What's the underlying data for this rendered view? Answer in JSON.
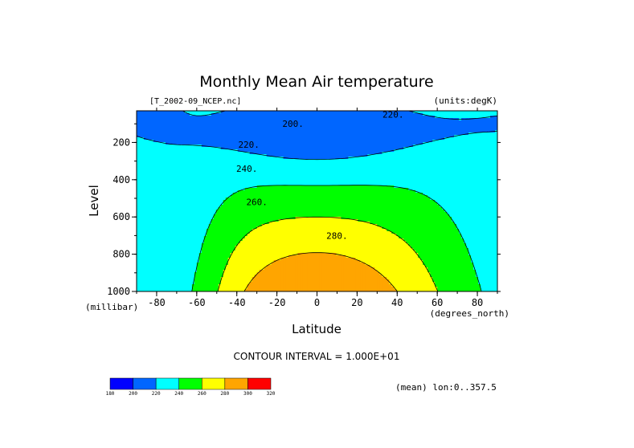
{
  "chart_data": {
    "type": "contour",
    "title": "Monthly Mean Air temperature",
    "file_label": "[T_2002-09_NCEP.nc]",
    "units_label": "(units:degK)",
    "xlabel": "Latitude",
    "xunits": "(degrees_north)",
    "ylabel": "Level",
    "yunits": "(millibar)",
    "xlim": [
      -90,
      90
    ],
    "ylim": [
      1000,
      30
    ],
    "y_inverted": true,
    "x_ticks": [
      -80,
      -60,
      -40,
      -20,
      0,
      20,
      40,
      60,
      80
    ],
    "y_ticks": [
      200,
      400,
      600,
      800,
      1000
    ],
    "contour_interval_text": "CONTOUR INTERVAL = 1.000E+01",
    "mean_text": "(mean) lon:0..357.5",
    "contour_labels": [
      {
        "text": "200.",
        "x": -12,
        "y": 100
      },
      {
        "text": "220.",
        "x": 38,
        "y": 50
      },
      {
        "text": "220.",
        "x": -34,
        "y": 210
      },
      {
        "text": "240.",
        "x": -35,
        "y": 340
      },
      {
        "text": "260.",
        "x": -30,
        "y": 520
      },
      {
        "text": "280.",
        "x": 10,
        "y": 700
      }
    ],
    "levels": [
      180,
      200,
      220,
      240,
      260,
      280,
      300,
      320
    ],
    "level_colors": [
      "#0000ff",
      "#0066ff",
      "#00ffff",
      "#00ff00",
      "#ffff00",
      "#ffa500",
      "#ff0000"
    ],
    "colorbar_labels": [
      "180",
      "200",
      "220",
      "240",
      "260",
      "280",
      "300",
      "320"
    ]
  }
}
